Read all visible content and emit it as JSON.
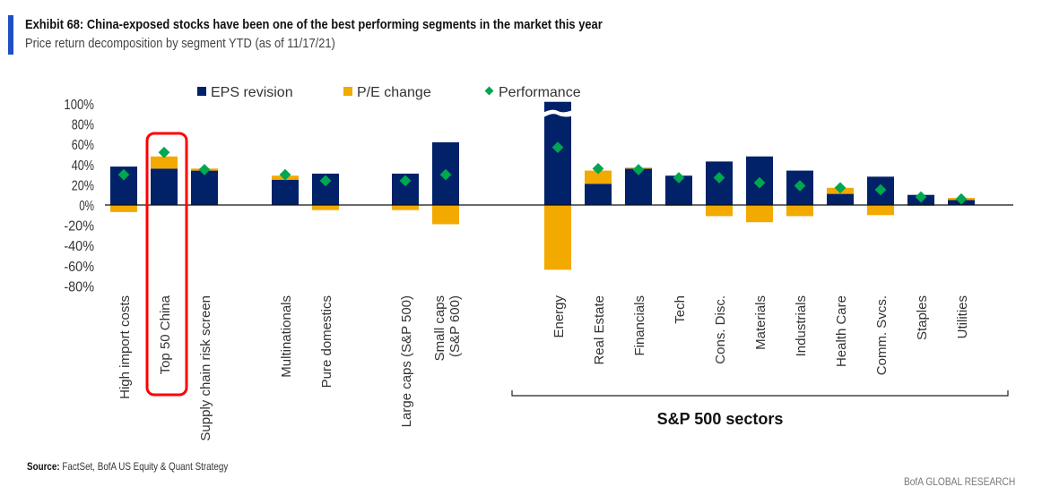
{
  "header": {
    "title": "Exhibit 68: China-exposed stocks have been one of the best performing segments in the market this year",
    "subtitle": "Price return decomposition  by segment YTD (as of 11/17/21)"
  },
  "chart_data": {
    "type": "bar",
    "stacked": true,
    "title": "",
    "xlabel": "",
    "ylabel": "",
    "ylim": [
      -80,
      100
    ],
    "yticks": [
      "100%",
      "80%",
      "60%",
      "40%",
      "20%",
      "0%",
      "-20%",
      "-40%",
      "-60%",
      "-80%"
    ],
    "grid": false,
    "legend_position": "top",
    "categories": [
      "High import costs",
      "Top 50 China",
      "Supply chain risk screen",
      "Multinationals",
      "Pure domestics",
      "Large caps (S&P 500)",
      "Small caps (S&P 600)",
      "Energy",
      "Real Estate",
      "Financials",
      "Tech",
      "Cons. Disc.",
      "Materials",
      "Industrials",
      "Health Care",
      "Comm. Svcs.",
      "Staples",
      "Utilities"
    ],
    "series": [
      {
        "name": "EPS revision",
        "kind": "bar",
        "color": "#012169",
        "values": [
          38,
          36,
          34,
          25,
          31,
          31,
          62,
          121,
          21,
          36,
          29,
          43,
          48,
          34,
          11,
          28,
          10,
          5
        ]
      },
      {
        "name": "P/E change",
        "kind": "bar",
        "color": "#f2a900",
        "values": [
          -7,
          12,
          2,
          4,
          -5,
          -5,
          -19,
          -64,
          13,
          1,
          -1,
          -11,
          -17,
          -11,
          6,
          -10,
          -1,
          2
        ]
      },
      {
        "name": "Performance",
        "kind": "marker",
        "color": "#00a651",
        "values": [
          30,
          52,
          35,
          30,
          24,
          24,
          30,
          57,
          36,
          35,
          27,
          27,
          22,
          19,
          17,
          15,
          8,
          6
        ]
      }
    ],
    "highlight": {
      "category": "Top 50 China",
      "color": "#ff0000"
    },
    "axis_break": {
      "category": "Energy"
    },
    "group_label": "S&P 500 sectors",
    "group_categories": [
      "Energy",
      "Real Estate",
      "Financials",
      "Tech",
      "Cons. Disc.",
      "Materials",
      "Industrials",
      "Health Care",
      "Comm. Svcs.",
      "Staples",
      "Utilities"
    ]
  },
  "footer": {
    "source_label": "Source:",
    "source_text": " FactSet, BofA US Equity & Quant Strategy",
    "brand": "BofA GLOBAL RESEARCH"
  }
}
